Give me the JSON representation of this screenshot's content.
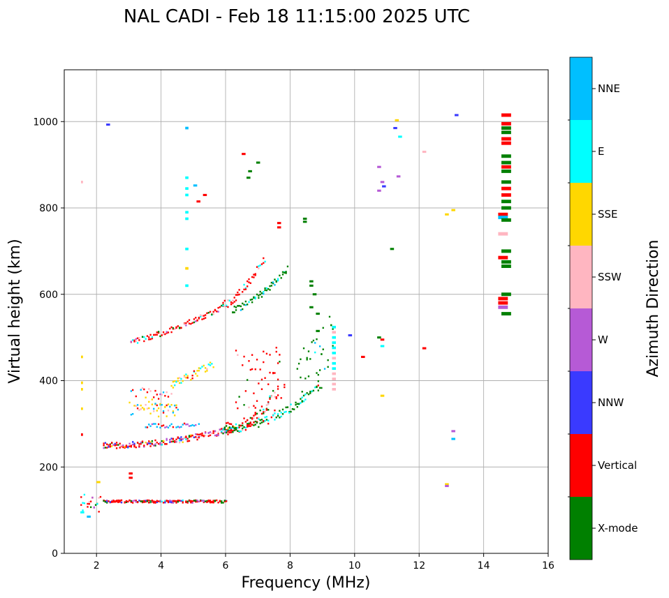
{
  "chart_data": {
    "type": "scatter",
    "title": "NAL CADI - Feb 18 11:15:00 2025 UTC",
    "xlabel": "Frequency (MHz)",
    "ylabel": "Virtual height (km)",
    "xlim": [
      1,
      16
    ],
    "ylim": [
      0,
      1120
    ],
    "xticks": [
      2,
      4,
      6,
      8,
      10,
      12,
      14,
      16
    ],
    "yticks": [
      0,
      200,
      400,
      600,
      800,
      1000
    ],
    "grid": true,
    "colorbar": {
      "label": "Azimuth Direction",
      "categories": [
        {
          "name": "X-mode",
          "color": "#008000"
        },
        {
          "name": "Vertical",
          "color": "#ff0000"
        },
        {
          "name": "NNW",
          "color": "#3a3aff"
        },
        {
          "name": "W",
          "color": "#b65ad6"
        },
        {
          "name": "SSW",
          "color": "#ffb6c1"
        },
        {
          "name": "SSE",
          "color": "#ffd700"
        },
        {
          "name": "E",
          "color": "#00ffff"
        },
        {
          "name": "NNE",
          "color": "#00bfff"
        }
      ]
    },
    "traces": [
      {
        "name": "E-layer trace",
        "x_range": [
          1.5,
          6.0
        ],
        "height_km": 120
      },
      {
        "name": "F-layer first-hop trace",
        "x_range": [
          2.0,
          8.6
        ],
        "height_km_start": 255,
        "height_km_end": 380
      },
      {
        "name": "F-layer upper trace",
        "x_range": [
          3.0,
          7.5
        ],
        "height_km_start": 340,
        "height_km_end": 470
      },
      {
        "name": "F-layer second-hop trace",
        "x_range": [
          3.0,
          7.8
        ],
        "height_km_start": 490,
        "height_km_end": 650
      }
    ]
  }
}
